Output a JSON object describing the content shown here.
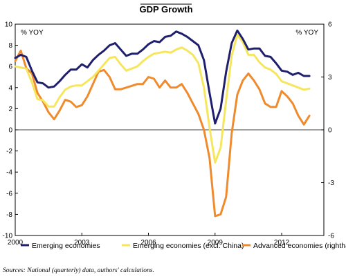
{
  "chart_data": {
    "type": "line",
    "title": "GDP Growth",
    "left_unit": "% YOY",
    "right_unit": "% YOY",
    "x_range": [
      2000,
      2013.9
    ],
    "x_ticks": [
      2000,
      2003,
      2006,
      2009,
      2012
    ],
    "y_left_range": [
      -10,
      10
    ],
    "y_left_ticks": [
      -10,
      -8,
      -6,
      -4,
      -2,
      0,
      2,
      4,
      6,
      8,
      10
    ],
    "y_right_range": [
      -6,
      6
    ],
    "y_right_ticks": [
      -6,
      -3,
      0,
      3,
      6
    ],
    "grid": false,
    "legend_position": "bottom",
    "source": "Sources: National (quarterly) data, authors' calculations.",
    "series": [
      {
        "name": "Emerging economies",
        "color": "#1f1f6e",
        "axis": "left",
        "x": [
          2000,
          2000.25,
          2000.5,
          2000.75,
          2001,
          2001.25,
          2001.5,
          2001.75,
          2002,
          2002.25,
          2002.5,
          2002.75,
          2003,
          2003.25,
          2003.5,
          2003.75,
          2004,
          2004.25,
          2004.5,
          2004.75,
          2005,
          2005.25,
          2005.5,
          2005.75,
          2006,
          2006.25,
          2006.5,
          2006.75,
          2007,
          2007.25,
          2007.5,
          2007.75,
          2008,
          2008.25,
          2008.5,
          2008.75,
          2009,
          2009.25,
          2009.5,
          2009.75,
          2010,
          2010.25,
          2010.5,
          2010.75,
          2011,
          2011.25,
          2011.5,
          2011.75,
          2012,
          2012.25,
          2012.5,
          2012.75,
          2013,
          2013.25
        ],
        "values": [
          6.8,
          7.1,
          6.9,
          5.6,
          4.5,
          4.4,
          4.0,
          4.1,
          4.6,
          5.2,
          5.7,
          5.7,
          6.2,
          5.9,
          6.6,
          7.1,
          7.5,
          8.0,
          8.2,
          7.6,
          7.0,
          7.2,
          7.2,
          7.6,
          8.1,
          8.4,
          8.3,
          8.8,
          8.9,
          9.3,
          9.1,
          8.8,
          8.4,
          8.0,
          6.6,
          3.5,
          0.6,
          2.0,
          5.5,
          8.2,
          9.4,
          8.6,
          7.6,
          7.7,
          7.7,
          7.0,
          6.9,
          6.3,
          5.6,
          5.5,
          5.2,
          5.4,
          5.1,
          5.1
        ]
      },
      {
        "name": "Emerging economies (excl. China)",
        "color": "#f5e65e",
        "axis": "left",
        "x": [
          2000,
          2000.25,
          2000.5,
          2000.75,
          2001,
          2001.25,
          2001.5,
          2001.75,
          2002,
          2002.25,
          2002.5,
          2002.75,
          2003,
          2003.25,
          2003.5,
          2003.75,
          2004,
          2004.25,
          2004.5,
          2004.75,
          2005,
          2005.25,
          2005.5,
          2005.75,
          2006,
          2006.25,
          2006.5,
          2006.75,
          2007,
          2007.25,
          2007.5,
          2007.75,
          2008,
          2008.25,
          2008.5,
          2008.75,
          2009,
          2009.25,
          2009.5,
          2009.75,
          2010,
          2010.25,
          2010.5,
          2010.75,
          2011,
          2011.25,
          2011.5,
          2011.75,
          2012,
          2012.25,
          2012.5,
          2012.75,
          2013,
          2013.25
        ],
        "values": [
          6.0,
          5.9,
          5.8,
          4.5,
          2.9,
          2.8,
          2.2,
          2.2,
          3.1,
          3.8,
          4.1,
          4.2,
          4.2,
          4.6,
          5.0,
          5.6,
          6.2,
          6.8,
          6.9,
          6.2,
          5.6,
          5.8,
          6.0,
          6.5,
          6.9,
          7.2,
          7.3,
          7.4,
          7.3,
          7.6,
          7.8,
          7.5,
          7.1,
          6.3,
          4.0,
          0.2,
          -3.1,
          -1.7,
          2.8,
          7.0,
          9.0,
          8.3,
          7.1,
          7.1,
          6.4,
          5.9,
          5.7,
          5.3,
          4.6,
          4.4,
          4.2,
          4.0,
          3.8,
          3.9
        ]
      },
      {
        "name": "Advanced economies (righthand scale)",
        "color": "#ef8a2d",
        "axis": "right",
        "x": [
          2000,
          2000.25,
          2000.5,
          2000.75,
          2001,
          2001.25,
          2001.5,
          2001.75,
          2002,
          2002.25,
          2002.5,
          2002.75,
          2003,
          2003.25,
          2003.5,
          2003.75,
          2004,
          2004.25,
          2004.5,
          2004.75,
          2005,
          2005.25,
          2005.5,
          2005.75,
          2006,
          2006.25,
          2006.5,
          2006.75,
          2007,
          2007.25,
          2007.5,
          2007.75,
          2008,
          2008.25,
          2008.5,
          2008.75,
          2009,
          2009.25,
          2009.5,
          2009.75,
          2010,
          2010.25,
          2010.5,
          2010.75,
          2011,
          2011.25,
          2011.5,
          2011.75,
          2012,
          2012.25,
          2012.5,
          2012.75,
          2013,
          2013.25
        ],
        "values": [
          3.9,
          4.5,
          3.5,
          3.2,
          2.1,
          1.6,
          1.0,
          0.6,
          1.1,
          1.7,
          1.6,
          1.3,
          1.4,
          1.9,
          2.6,
          3.3,
          3.4,
          3.0,
          2.3,
          2.3,
          2.4,
          2.5,
          2.6,
          2.6,
          3.0,
          2.9,
          2.4,
          2.8,
          2.4,
          2.4,
          2.6,
          2.1,
          1.5,
          0.9,
          0.0,
          -1.6,
          -4.9,
          -4.8,
          -3.8,
          -0.2,
          2.0,
          2.8,
          3.2,
          2.8,
          2.3,
          1.5,
          1.3,
          1.3,
          2.2,
          1.9,
          1.5,
          0.8,
          0.3,
          0.8
        ]
      }
    ]
  }
}
